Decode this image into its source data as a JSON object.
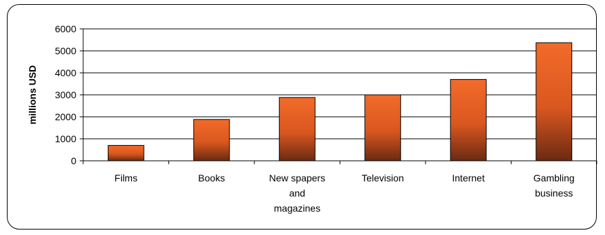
{
  "chart_data": {
    "type": "bar",
    "categories": [
      "Films",
      "Books",
      "New spapers and magazines",
      "Television",
      "Internet",
      "Gambling business"
    ],
    "category_lines": [
      [
        "Films"
      ],
      [
        "Books"
      ],
      [
        "New spapers",
        "and",
        "magazines"
      ],
      [
        "Television"
      ],
      [
        "Internet"
      ],
      [
        "Gambling",
        "business"
      ]
    ],
    "values": [
      700,
      1880,
      2880,
      3000,
      3700,
      5370
    ],
    "title": "",
    "xlabel": "",
    "ylabel": "millions USD",
    "ylim": [
      0,
      6000
    ],
    "yticks": [
      0,
      1000,
      2000,
      3000,
      4000,
      5000,
      6000
    ],
    "grid": true,
    "bar_color_top": "#f26b2a",
    "bar_color_bottom": "#6a2a12"
  }
}
